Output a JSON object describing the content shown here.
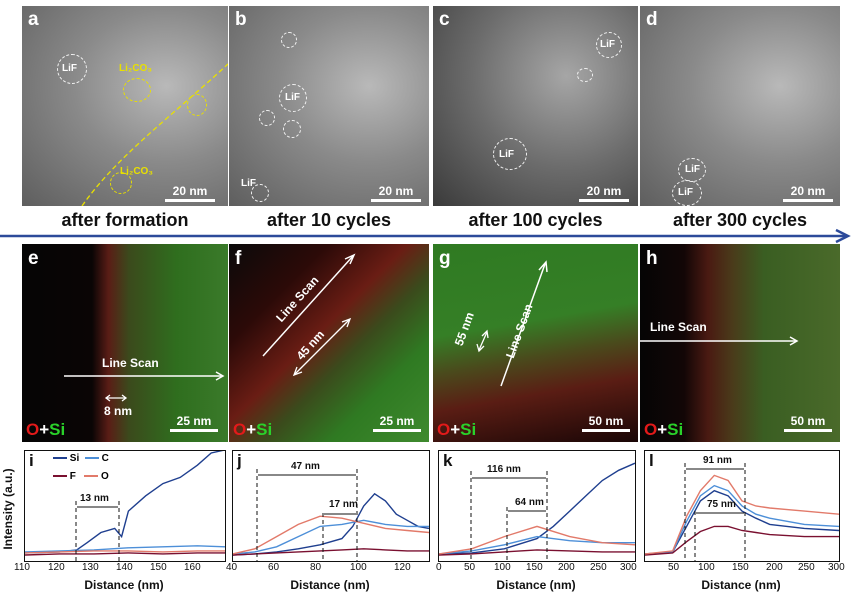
{
  "panels": {
    "a": {
      "letter": "a",
      "scale": "20 nm",
      "labels": {
        "lif": "LiF",
        "li2co3_top": "Li₂CO₃",
        "li2co3_bottom": "Li₂CO₃"
      }
    },
    "b": {
      "letter": "b",
      "scale": "20 nm",
      "labels": {
        "lif_1": "LiF",
        "lif_2": "LiF"
      }
    },
    "c": {
      "letter": "c",
      "scale": "20 nm",
      "labels": {
        "lif_1": "LiF",
        "lif_2": "LiF"
      }
    },
    "d": {
      "letter": "d",
      "scale": "20 nm",
      "labels": {
        "lif_1": "LiF",
        "lif_2": "LiF"
      }
    },
    "e": {
      "letter": "e",
      "scale": "25 nm",
      "line_scan": "Line Scan",
      "width": "8 nm"
    },
    "f": {
      "letter": "f",
      "scale": "25 nm",
      "line_scan": "Line Scan",
      "width": "45 nm"
    },
    "g": {
      "letter": "g",
      "scale": "50 nm",
      "line_scan": "Line Scan",
      "width": "55 nm"
    },
    "h": {
      "letter": "h",
      "scale": "50 nm",
      "line_scan": "Line Scan"
    },
    "i": {
      "letter": "i",
      "width": "13 nm",
      "ticks": [
        "110",
        "120",
        "130",
        "140",
        "150",
        "160"
      ]
    },
    "j": {
      "letter": "j",
      "width_1": "47 nm",
      "width_2": "17 nm",
      "ticks": [
        "40",
        "60",
        "80",
        "100",
        "120"
      ]
    },
    "k": {
      "letter": "k",
      "width_1": "116 nm",
      "width_2": "64 nm",
      "ticks": [
        "0",
        "50",
        "100",
        "150",
        "200",
        "250",
        "300"
      ]
    },
    "l": {
      "letter": "l",
      "width_1": "91 nm",
      "width_2": "75 nm",
      "ticks": [
        "50",
        "100",
        "150",
        "200",
        "250",
        "300"
      ]
    }
  },
  "captions": [
    "after formation",
    "after 10 cycles",
    "after 100 cycles",
    "after 300 cycles"
  ],
  "eds_label": {
    "o": "O",
    "plus": "+",
    "si": "Si"
  },
  "axes": {
    "ylabel": "Intensity (a.u.)",
    "xlabel": "Distance (nm)"
  },
  "legend": {
    "si": "Si",
    "c": "C",
    "f": "F",
    "o": "O"
  },
  "colors": {
    "si": "#1f3f8f",
    "c": "#4d8fd8",
    "f": "#7a1030",
    "o": "#e27a6a",
    "arrow": "#2c4a9a"
  },
  "chart_data": [
    {
      "type": "line",
      "panel": "i",
      "xlabel": "Distance (nm)",
      "ylabel": "Intensity (a.u.)",
      "xlim": [
        110,
        168
      ],
      "series": [
        {
          "name": "Si",
          "x": [
            110,
            120,
            125,
            128,
            132,
            136,
            138,
            140,
            145,
            150,
            155,
            160,
            164,
            168
          ],
          "values": [
            0.04,
            0.05,
            0.07,
            0.14,
            0.24,
            0.28,
            0.2,
            0.45,
            0.6,
            0.72,
            0.78,
            0.9,
            1.02,
            1.05
          ]
        },
        {
          "name": "C",
          "x": [
            110,
            120,
            130,
            140,
            150,
            160,
            168
          ],
          "values": [
            0.05,
            0.06,
            0.07,
            0.09,
            0.1,
            0.11,
            0.1
          ]
        },
        {
          "name": "F",
          "x": [
            110,
            120,
            130,
            140,
            150,
            160,
            168
          ],
          "values": [
            0.02,
            0.03,
            0.03,
            0.04,
            0.03,
            0.04,
            0.04
          ]
        },
        {
          "name": "O",
          "x": [
            110,
            120,
            130,
            140,
            150,
            160,
            168
          ],
          "values": [
            0.04,
            0.05,
            0.06,
            0.06,
            0.05,
            0.06,
            0.06
          ]
        }
      ]
    },
    {
      "type": "line",
      "panel": "j",
      "xlabel": "Distance (nm)",
      "xlim": [
        40,
        130
      ],
      "series": [
        {
          "name": "Si",
          "x": [
            40,
            50,
            60,
            70,
            80,
            90,
            95,
            100,
            105,
            110,
            115,
            120,
            125,
            130
          ],
          "values": [
            0.02,
            0.03,
            0.05,
            0.08,
            0.12,
            0.18,
            0.3,
            0.5,
            0.62,
            0.55,
            0.42,
            0.36,
            0.3,
            0.28
          ]
        },
        {
          "name": "C",
          "x": [
            40,
            50,
            60,
            70,
            80,
            90,
            100,
            110,
            120,
            130
          ],
          "values": [
            0.03,
            0.05,
            0.1,
            0.2,
            0.3,
            0.32,
            0.36,
            0.32,
            0.3,
            0.3
          ]
        },
        {
          "name": "F",
          "x": [
            40,
            50,
            60,
            70,
            80,
            90,
            100,
            110,
            120,
            130
          ],
          "values": [
            0.02,
            0.03,
            0.04,
            0.05,
            0.06,
            0.07,
            0.08,
            0.07,
            0.06,
            0.06
          ]
        },
        {
          "name": "O",
          "x": [
            40,
            50,
            60,
            70,
            80,
            90,
            100,
            110,
            120,
            130
          ],
          "values": [
            0.03,
            0.08,
            0.2,
            0.32,
            0.4,
            0.38,
            0.33,
            0.28,
            0.26,
            0.24
          ]
        }
      ]
    },
    {
      "type": "line",
      "panel": "k",
      "xlabel": "Distance (nm)",
      "xlim": [
        0,
        300
      ],
      "series": [
        {
          "name": "Si",
          "x": [
            0,
            50,
            100,
            150,
            175,
            200,
            225,
            250,
            275,
            300
          ],
          "values": [
            0.03,
            0.04,
            0.08,
            0.18,
            0.3,
            0.45,
            0.6,
            0.75,
            0.85,
            0.92
          ]
        },
        {
          "name": "C",
          "x": [
            0,
            50,
            100,
            150,
            200,
            250,
            300
          ],
          "values": [
            0.03,
            0.06,
            0.12,
            0.2,
            0.16,
            0.14,
            0.14
          ]
        },
        {
          "name": "F",
          "x": [
            0,
            50,
            100,
            150,
            200,
            250,
            300
          ],
          "values": [
            0.02,
            0.03,
            0.05,
            0.07,
            0.06,
            0.05,
            0.05
          ]
        },
        {
          "name": "O",
          "x": [
            0,
            50,
            100,
            150,
            200,
            250,
            300
          ],
          "values": [
            0.03,
            0.08,
            0.2,
            0.3,
            0.2,
            0.14,
            0.12
          ]
        }
      ]
    },
    {
      "type": "line",
      "panel": "l",
      "xlabel": "Distance (nm)",
      "xlim": [
        20,
        300
      ],
      "series": [
        {
          "name": "Si",
          "x": [
            20,
            60,
            80,
            100,
            120,
            140,
            160,
            180,
            200,
            250,
            300
          ],
          "values": [
            0.03,
            0.05,
            0.3,
            0.55,
            0.65,
            0.6,
            0.45,
            0.38,
            0.32,
            0.28,
            0.26
          ]
        },
        {
          "name": "C",
          "x": [
            20,
            60,
            80,
            100,
            120,
            140,
            160,
            180,
            200,
            250,
            300
          ],
          "values": [
            0.03,
            0.05,
            0.35,
            0.6,
            0.7,
            0.65,
            0.5,
            0.42,
            0.38,
            0.32,
            0.3
          ]
        },
        {
          "name": "F",
          "x": [
            20,
            60,
            80,
            100,
            120,
            140,
            160,
            180,
            200,
            250,
            300
          ],
          "values": [
            0.02,
            0.04,
            0.15,
            0.25,
            0.3,
            0.3,
            0.26,
            0.24,
            0.22,
            0.2,
            0.2
          ]
        },
        {
          "name": "O",
          "x": [
            20,
            60,
            80,
            100,
            120,
            140,
            160,
            180,
            200,
            250,
            300
          ],
          "values": [
            0.03,
            0.06,
            0.4,
            0.65,
            0.8,
            0.75,
            0.55,
            0.5,
            0.48,
            0.45,
            0.42
          ]
        }
      ]
    }
  ]
}
